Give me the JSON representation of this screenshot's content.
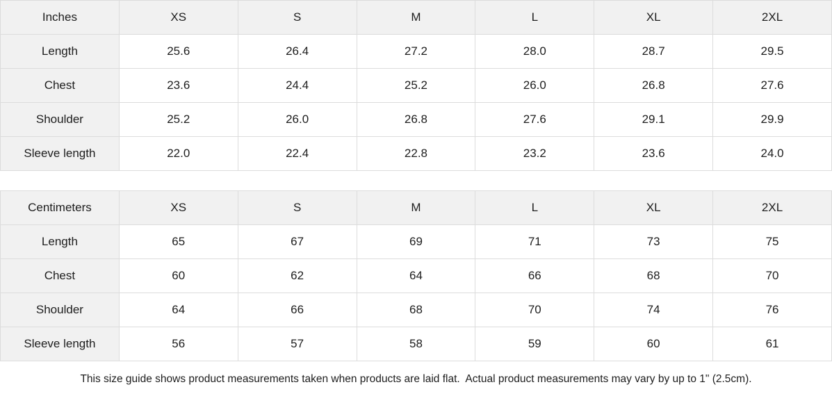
{
  "inches": {
    "header": [
      "Inches",
      "XS",
      "S",
      "M",
      "L",
      "XL",
      "2XL"
    ],
    "rows": [
      {
        "label": "Length",
        "values": [
          "25.6",
          "26.4",
          "27.2",
          "28.0",
          "28.7",
          "29.5"
        ]
      },
      {
        "label": "Chest",
        "values": [
          "23.6",
          "24.4",
          "25.2",
          "26.0",
          "26.8",
          "27.6"
        ]
      },
      {
        "label": "Shoulder",
        "values": [
          "25.2",
          "26.0",
          "26.8",
          "27.6",
          "29.1",
          "29.9"
        ]
      },
      {
        "label": "Sleeve length",
        "values": [
          "22.0",
          "22.4",
          "22.8",
          "23.2",
          "23.6",
          "24.0"
        ]
      }
    ]
  },
  "centimeters": {
    "header": [
      "Centimeters",
      "XS",
      "S",
      "M",
      "L",
      "XL",
      "2XL"
    ],
    "rows": [
      {
        "label": "Length",
        "values": [
          "65",
          "67",
          "69",
          "71",
          "73",
          "75"
        ]
      },
      {
        "label": "Chest",
        "values": [
          "60",
          "62",
          "64",
          "66",
          "68",
          "70"
        ]
      },
      {
        "label": "Shoulder",
        "values": [
          "64",
          "66",
          "68",
          "70",
          "74",
          "76"
        ]
      },
      {
        "label": "Sleeve length",
        "values": [
          "56",
          "57",
          "58",
          "59",
          "60",
          "61"
        ]
      }
    ]
  },
  "footer": {
    "note": "This size guide shows product measurements taken when products are laid flat.  Actual product measurements may vary by up to 1\" (2.5cm)."
  },
  "colors": {
    "header_bg": "#f1f1f1",
    "border": "#dcdcdc",
    "text": "#1d1d1d",
    "cell_bg": "#ffffff"
  }
}
